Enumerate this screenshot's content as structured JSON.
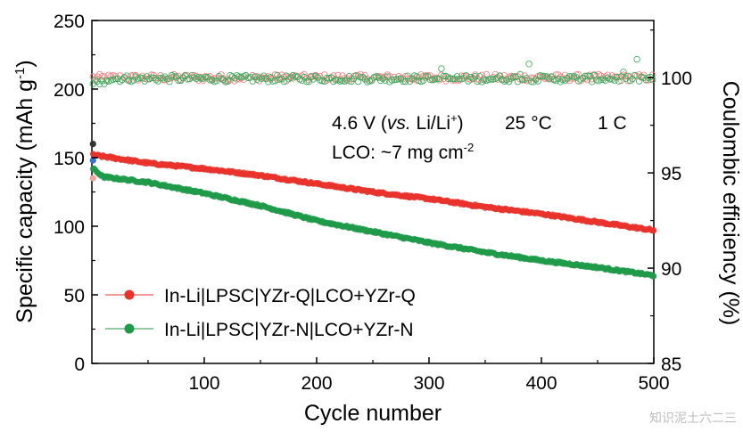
{
  "chart_data": {
    "type": "scatter",
    "xlabel": "Cycle number",
    "ylabel_left": "Specific capacity (mAh g",
    "ylabel_left_sup": "-1",
    "ylabel_left_close": ")",
    "ylabel_right": "Coulombic efficiency (%)",
    "xlim": [
      0,
      500
    ],
    "ylim_left": [
      0,
      250
    ],
    "ylim_right": [
      85,
      103
    ],
    "x_ticks": [
      100,
      200,
      300,
      400,
      500
    ],
    "x_tick_labels": [
      "100",
      "200",
      "300",
      "400",
      "500"
    ],
    "y_left_ticks": [
      0,
      50,
      100,
      150,
      200,
      250
    ],
    "y_left_tick_labels": [
      "0",
      "50",
      "100",
      "150",
      "200",
      "250"
    ],
    "y_right_ticks": [
      85,
      90,
      95,
      100
    ],
    "y_right_tick_labels": [
      "85",
      "90",
      "95",
      "100"
    ],
    "annotation": {
      "line1_voltage": "4.6 V (",
      "line1_vs": "vs.",
      "line1_ref": " Li/Li",
      "line1_ref_sup": "+",
      "line1_close": ")",
      "line1_temp": "25 °C",
      "line1_rate": "1 C",
      "line2_text": "LCO: ~7 mg cm",
      "line2_sup": "-2"
    },
    "series": [
      {
        "name": "In-Li|LPSC|YZr-Q|LCO+YZr-Q",
        "color": "#e8332b",
        "capacity_keypoints": [
          [
            1,
            152
          ],
          [
            50,
            146
          ],
          [
            100,
            142
          ],
          [
            150,
            137
          ],
          [
            200,
            131
          ],
          [
            250,
            125
          ],
          [
            300,
            120
          ],
          [
            350,
            114
          ],
          [
            400,
            109
          ],
          [
            450,
            103
          ],
          [
            500,
            97
          ]
        ],
        "coulombic_efficiency_avg": 100.0
      },
      {
        "name": "In-Li|LPSC|YZr-N|LCO+YZr-N",
        "color": "#1f9a49",
        "capacity_keypoints": [
          [
            1,
            142
          ],
          [
            10,
            136
          ],
          [
            50,
            132
          ],
          [
            100,
            124
          ],
          [
            150,
            115
          ],
          [
            200,
            104
          ],
          [
            250,
            96
          ],
          [
            300,
            88
          ],
          [
            350,
            81
          ],
          [
            400,
            75
          ],
          [
            450,
            70
          ],
          [
            500,
            64
          ]
        ],
        "coulombic_efficiency_avg": 99.95
      }
    ]
  },
  "watermark": "知识泥土六二三"
}
